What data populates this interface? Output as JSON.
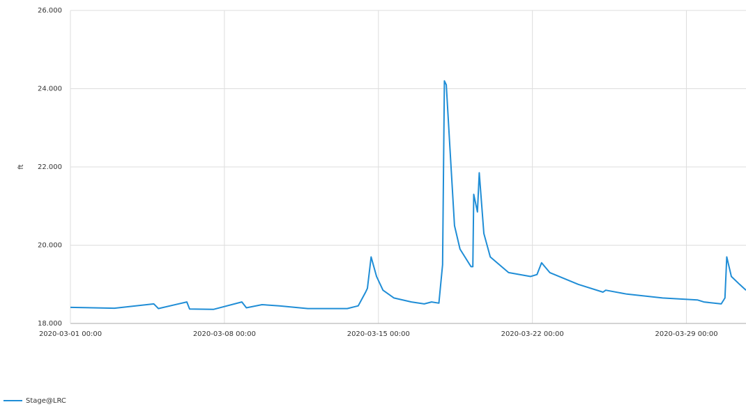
{
  "chart_data": {
    "type": "line",
    "y_label": "ft",
    "x": [
      "2020-03-01 00:00",
      "2020-03-03 00:00",
      "2020-03-04 19:00",
      "2020-03-05 00:00",
      "2020-03-06 07:00",
      "2020-03-06 10:00",
      "2020-03-07 12:00",
      "2020-03-08 19:00",
      "2020-03-09 00:00",
      "2020-03-09 17:00",
      "2020-03-10 12:00",
      "2020-03-11 19:00",
      "2020-03-13 14:00",
      "2020-03-14 02:00",
      "2020-03-14 10:00",
      "2020-03-14 12:00",
      "2020-03-14 16:00",
      "2020-03-14 22:00",
      "2020-03-15 05:00",
      "2020-03-15 17:00",
      "2020-03-16 12:00",
      "2020-03-17 02:00",
      "2020-03-17 10:00",
      "2020-03-17 18:00",
      "2020-03-17 22:00",
      "2020-03-18 00:00",
      "2020-03-18 02:00",
      "2020-03-18 06:00",
      "2020-03-18 11:00",
      "2020-03-18 17:00",
      "2020-03-19 05:00",
      "2020-03-19 07:00",
      "2020-03-19 08:00",
      "2020-03-19 12:00",
      "2020-03-19 14:00",
      "2020-03-19 19:00",
      "2020-03-20 02:00",
      "2020-03-20 22:00",
      "2020-03-21 22:00",
      "2020-03-22 05:00",
      "2020-03-22 10:00",
      "2020-03-22 19:00",
      "2020-03-24 02:00",
      "2020-03-25 05:00",
      "2020-03-25 08:00",
      "2020-03-26 07:00",
      "2020-03-27 22:00",
      "2020-03-29 12:00",
      "2020-03-29 19:00",
      "2020-03-30 14:00",
      "2020-03-30 18:00",
      "2020-03-30 20:00",
      "2020-03-31 01:00",
      "2020-03-31 10:00",
      "2020-03-31 17:00"
    ],
    "series": [
      {
        "name": "Stage@LRC",
        "color": "#1f8dd6",
        "values": [
          18.41,
          18.39,
          18.5,
          18.38,
          18.55,
          18.37,
          18.36,
          18.55,
          18.4,
          18.48,
          18.45,
          18.38,
          18.38,
          18.45,
          18.8,
          18.9,
          19.7,
          19.2,
          18.85,
          18.65,
          18.55,
          18.5,
          18.55,
          18.52,
          19.5,
          24.2,
          24.1,
          22.5,
          20.5,
          19.9,
          19.45,
          19.45,
          21.3,
          20.85,
          21.85,
          20.3,
          19.7,
          19.3,
          19.2,
          19.25,
          19.55,
          19.3,
          19.0,
          18.8,
          18.85,
          18.75,
          18.65,
          18.6,
          18.55,
          18.5,
          18.65,
          19.7,
          19.2,
          19.0,
          18.85
        ]
      }
    ],
    "xlim": [
      "2020-03-01 00:00",
      "2020-03-31 17:00"
    ],
    "xticks": [
      "2020-03-01 00:00",
      "2020-03-08 00:00",
      "2020-03-15 00:00",
      "2020-03-22 00:00",
      "2020-03-29 00:00"
    ],
    "ylim": [
      18,
      26
    ],
    "yticks": [
      {
        "value": 18,
        "label": "18.000"
      },
      {
        "value": 20,
        "label": "20.000"
      },
      {
        "value": 22,
        "label": "22.000"
      },
      {
        "value": 24,
        "label": "24.000"
      },
      {
        "value": 26,
        "label": "26.000"
      }
    ],
    "grid": true
  }
}
